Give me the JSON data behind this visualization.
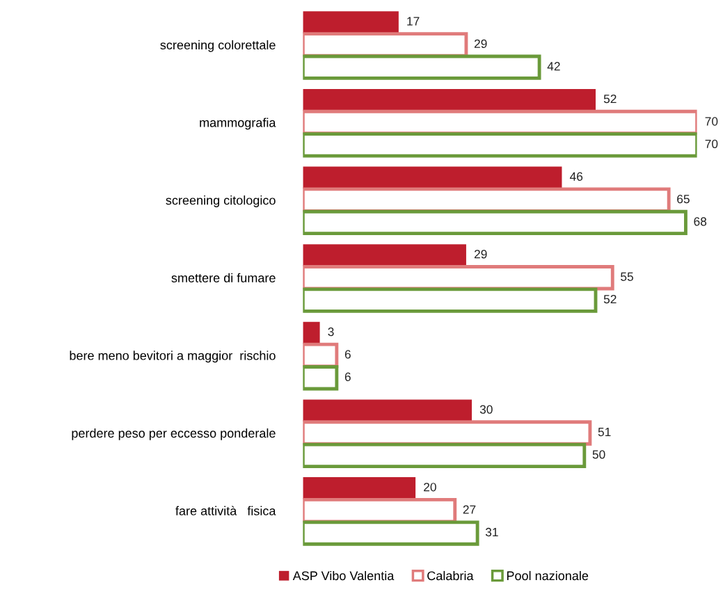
{
  "chart_data": {
    "type": "bar",
    "orientation": "horizontal",
    "data_labels": true,
    "legend": "bottom",
    "grid": false,
    "categories": [
      "screening colorettale",
      "mammografia",
      "screening citologico",
      "smettere di fumare",
      "bere meno bevitori a maggior  rischio",
      "perdere peso per eccesso ponderale",
      "fare attività   fisica"
    ],
    "series": [
      {
        "name": "ASP Vibo Valentia",
        "color": "#be1e2d",
        "values": [
          17,
          52,
          46,
          29,
          3,
          30,
          20
        ]
      },
      {
        "name": "Calabria",
        "color": "#e07b7b",
        "values": [
          29,
          70,
          65,
          55,
          6,
          51,
          27
        ]
      },
      {
        "name": "Pool nazionale",
        "color": "#6a9a3a",
        "values": [
          42,
          70,
          68,
          52,
          6,
          50,
          31
        ]
      }
    ]
  }
}
